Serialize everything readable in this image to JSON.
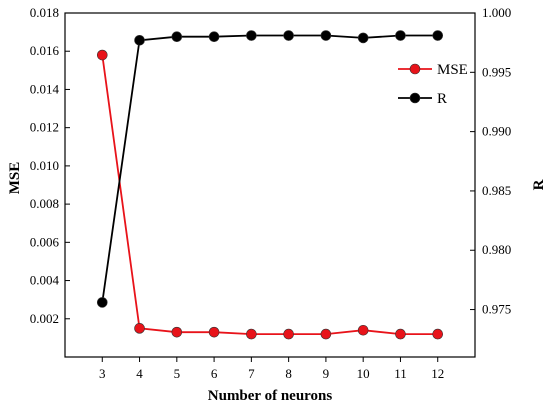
{
  "chart_data": {
    "type": "line",
    "xlabel": "Number of neurons",
    "ylabel_left": "MSE",
    "ylabel_right": "R",
    "x": [
      3,
      4,
      5,
      6,
      7,
      8,
      9,
      10,
      11,
      12
    ],
    "x_ticks": [
      "3",
      "4",
      "5",
      "6",
      "7",
      "8",
      "9",
      "10",
      "11",
      "12"
    ],
    "xlim": [
      2,
      13
    ],
    "ylim_left": [
      0.0,
      0.018
    ],
    "ylim_right": [
      0.971,
      1.0
    ],
    "left_ticks": [
      "0.002",
      "0.004",
      "0.006",
      "0.008",
      "0.010",
      "0.012",
      "0.014",
      "0.016",
      "0.018"
    ],
    "left_tick_values": [
      0.002,
      0.004,
      0.006,
      0.008,
      0.01,
      0.012,
      0.014,
      0.016,
      0.018
    ],
    "right_ticks": [
      "0.975",
      "0.980",
      "0.985",
      "0.990",
      "0.995",
      "1.000"
    ],
    "right_tick_values": [
      0.975,
      0.98,
      0.985,
      0.99,
      0.995,
      1.0
    ],
    "series": [
      {
        "name": "MSE",
        "axis": "left",
        "color": "#e8131a",
        "values": [
          0.0158,
          0.0015,
          0.0013,
          0.0013,
          0.0012,
          0.0012,
          0.0012,
          0.0014,
          0.0012,
          0.0012
        ]
      },
      {
        "name": "R",
        "axis": "right",
        "color": "#000000",
        "values": [
          0.9756,
          0.9977,
          0.998,
          0.998,
          0.9981,
          0.9981,
          0.9981,
          0.9979,
          0.9981,
          0.9981
        ]
      }
    ],
    "grid": false,
    "legend_position": "top-right"
  }
}
